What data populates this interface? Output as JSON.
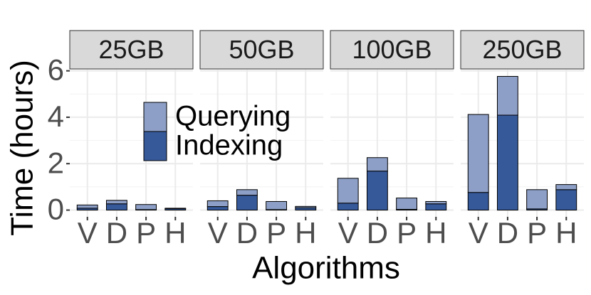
{
  "chart_data": [
    {
      "type": "bar",
      "title": "25GB",
      "xlabel": "Algorithms",
      "ylabel": "Time (hours)",
      "stacked": true,
      "categories": [
        "V",
        "D",
        "P",
        "H"
      ],
      "series": [
        {
          "name": "Indexing",
          "color": "#36599a",
          "values": [
            0.08,
            0.27,
            0.02,
            0.06
          ]
        },
        {
          "name": "Querying",
          "color": "#8d9fc6",
          "values": [
            0.14,
            0.15,
            0.22,
            0.02
          ]
        }
      ],
      "ylim": [
        -0.29,
        6.05
      ],
      "yticks": [
        0,
        2,
        4,
        6
      ],
      "grid": true
    },
    {
      "type": "bar",
      "title": "50GB",
      "stacked": true,
      "categories": [
        "V",
        "D",
        "P",
        "H"
      ],
      "series": [
        {
          "name": "Indexing",
          "color": "#36599a",
          "values": [
            0.15,
            0.64,
            0.02,
            0.1
          ]
        },
        {
          "name": "Querying",
          "color": "#8d9fc6",
          "values": [
            0.25,
            0.24,
            0.35,
            0.06
          ]
        }
      ],
      "ylim": [
        -0.29,
        6.05
      ],
      "yticks": [
        0,
        2,
        4,
        6
      ],
      "grid": true
    },
    {
      "type": "bar",
      "title": "100GB",
      "stacked": true,
      "categories": [
        "V",
        "D",
        "P",
        "H"
      ],
      "series": [
        {
          "name": "Indexing",
          "color": "#36599a",
          "values": [
            0.3,
            1.68,
            0.03,
            0.27
          ]
        },
        {
          "name": "Querying",
          "color": "#8d9fc6",
          "values": [
            1.07,
            0.58,
            0.49,
            0.1
          ]
        }
      ],
      "ylim": [
        -0.29,
        6.05
      ],
      "yticks": [
        0,
        2,
        4,
        6
      ],
      "grid": true
    },
    {
      "type": "bar",
      "title": "250GB",
      "stacked": true,
      "categories": [
        "V",
        "D",
        "P",
        "H"
      ],
      "series": [
        {
          "name": "Indexing",
          "color": "#36599a",
          "values": [
            0.76,
            4.09,
            0.05,
            0.88
          ]
        },
        {
          "name": "Querying",
          "color": "#8d9fc6",
          "values": [
            3.36,
            1.67,
            0.83,
            0.22
          ]
        }
      ],
      "ylim": [
        -0.29,
        6.05
      ],
      "yticks": [
        0,
        2,
        4,
        6
      ],
      "grid": true
    }
  ]
}
